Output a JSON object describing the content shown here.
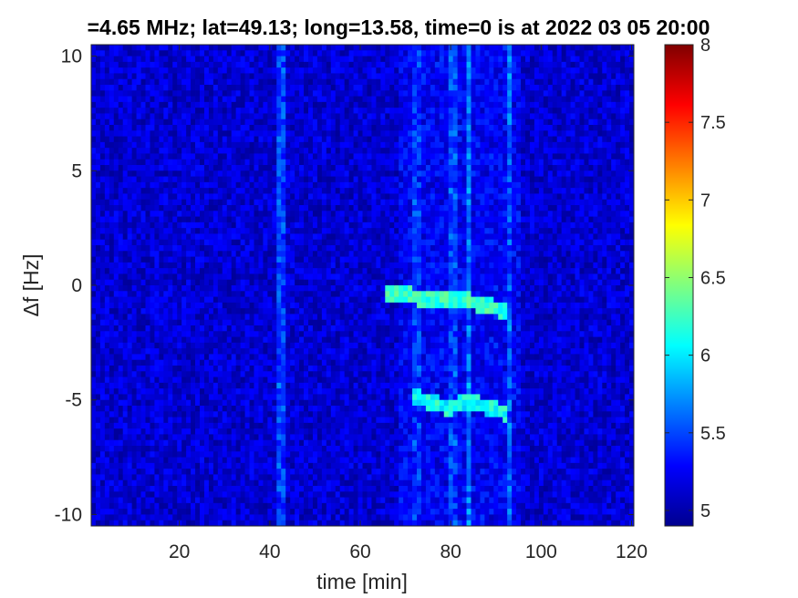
{
  "chart_data": {
    "type": "heatmap",
    "title": "=4.65 MHz;  lat=49.13; long=13.58, time=0 is at 2022 03 05 20:00",
    "xlabel": "time [min]",
    "ylabel": "Δf [Hz]",
    "xlim": [
      0.5,
      120.5
    ],
    "ylim": [
      -10.5,
      10.5
    ],
    "xticks": [
      20,
      40,
      60,
      80,
      100,
      120
    ],
    "yticks": [
      -10,
      -5,
      0,
      5,
      10
    ],
    "ytick_labels": [
      "-10",
      "-5",
      "0",
      "5",
      "10"
    ],
    "colormap": "jet",
    "clim": [
      4.9,
      8
    ],
    "colorbar_ticks": [
      5,
      5.5,
      6,
      6.5,
      7,
      7.5,
      8
    ],
    "colorbar_tick_labels": [
      "5",
      "5.5",
      "6",
      "6.5",
      "7",
      "7.5",
      "8"
    ],
    "background_level": 5.15,
    "bright_columns": [
      {
        "time": 42.5,
        "level": 5.9
      },
      {
        "time": 72.5,
        "level": 5.8
      },
      {
        "time": 80.5,
        "level": 5.9
      },
      {
        "time": 84.0,
        "level": 5.8
      },
      {
        "time": 93.0,
        "level": 5.7
      }
    ],
    "traces": [
      {
        "points": [
          [
            66,
            -0.3
          ],
          [
            72,
            -0.5
          ],
          [
            78,
            -0.7
          ],
          [
            84,
            -0.7
          ],
          [
            88,
            -0.9
          ],
          [
            92,
            -1.1
          ]
        ],
        "level": 6.4
      },
      {
        "points": [
          [
            72,
            -4.8
          ],
          [
            76,
            -5.2
          ],
          [
            80,
            -5.3
          ],
          [
            84,
            -5.1
          ],
          [
            88,
            -5.3
          ],
          [
            92,
            -5.6
          ]
        ],
        "level": 6.3
      }
    ],
    "grid": false
  }
}
